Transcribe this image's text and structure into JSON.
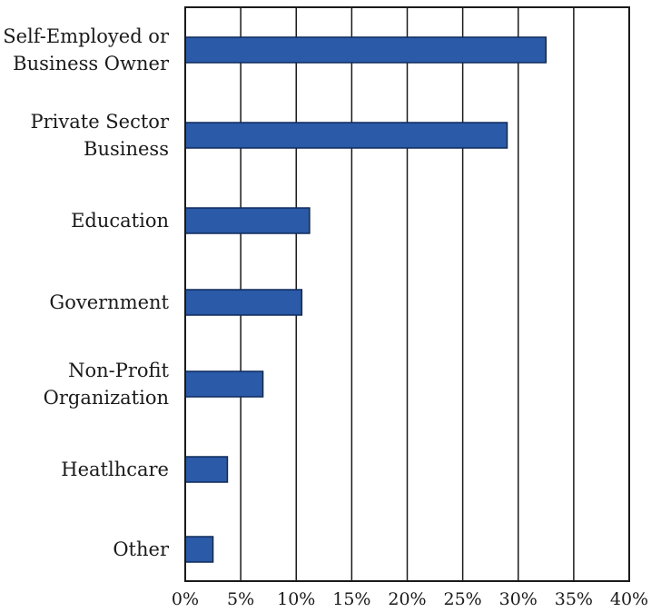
{
  "chart_data": {
    "type": "bar",
    "orientation": "horizontal",
    "categories": [
      [
        "Self-Employed or",
        "Business Owner"
      ],
      [
        "Private Sector",
        "Business"
      ],
      [
        "Education"
      ],
      [
        "Government"
      ],
      [
        "Non-Profit",
        "Organization"
      ],
      [
        "Heatlhcare"
      ],
      [
        "Other"
      ]
    ],
    "values": [
      32.5,
      29,
      11.2,
      10.5,
      7,
      3.8,
      2.5
    ],
    "xlim": [
      0,
      40
    ],
    "xticks": [
      0,
      5,
      10,
      15,
      20,
      25,
      30,
      35,
      40
    ],
    "tick_labels": [
      "0%",
      "5%",
      "10%",
      "15%",
      "20%",
      "25%",
      "30%",
      "35%",
      "40%"
    ],
    "title": "",
    "xlabel": "",
    "ylabel": "",
    "grid": "vertical",
    "legend": "none",
    "bar_color": "#2a5aa8",
    "bar_edge_color": "#0f2a5a"
  }
}
